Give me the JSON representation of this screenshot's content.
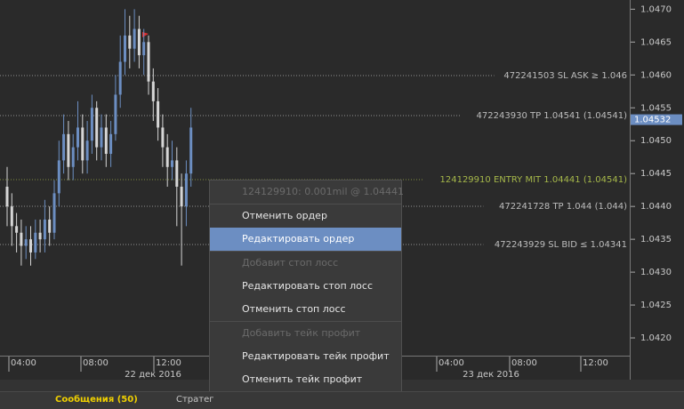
{
  "chart": {
    "type": "candlestick",
    "ylim": [
      1.04173,
      1.04714
    ],
    "yticks": [
      {
        "value": 1.047,
        "label": "1.0470"
      },
      1.0465,
      {
        "value": 1.046,
        "label": "1.0460"
      },
      1.0455,
      {
        "value": 1.045,
        "label": "1.0450"
      },
      1.0445,
      {
        "value": 1.044,
        "label": "1.0440"
      },
      1.0435,
      {
        "value": 1.043,
        "label": "1.0430"
      },
      1.0425,
      {
        "value": 1.042,
        "label": "1.0420"
      }
    ],
    "current_price": 1.04532,
    "open": [
      1.0443,
      1.044,
      1.0437,
      1.0436,
      1.0434,
      1.0435,
      1.0433,
      1.0436,
      1.0435,
      1.0438,
      1.0436,
      1.0442,
      1.0447,
      1.0451,
      1.0446,
      1.0449,
      1.0452,
      1.0447,
      1.045,
      1.0455,
      1.0449,
      1.0452,
      1.0448,
      1.0451,
      1.0457,
      1.0462,
      1.0466,
      1.0464,
      1.0467,
      1.0463,
      1.0465,
      1.0459,
      1.0456,
      1.0452,
      1.0449,
      1.0446,
      1.0447,
      1.0443,
      1.044,
      1.0445
    ],
    "high": [
      1.0446,
      1.0442,
      1.0439,
      1.0438,
      1.0437,
      1.0437,
      1.0438,
      1.0438,
      1.0441,
      1.044,
      1.0444,
      1.045,
      1.0454,
      1.0453,
      1.0451,
      1.0456,
      1.0454,
      1.0453,
      1.0457,
      1.0456,
      1.0454,
      1.0454,
      1.0453,
      1.046,
      1.0466,
      1.047,
      1.0469,
      1.047,
      1.0469,
      1.0467,
      1.0466,
      1.0461,
      1.0458,
      1.0454,
      1.0451,
      1.045,
      1.0449,
      1.0445,
      1.0447,
      1.0455
    ],
    "low": [
      1.0437,
      1.0434,
      1.0433,
      1.0431,
      1.0432,
      1.0431,
      1.0432,
      1.0433,
      1.0433,
      1.0434,
      1.0435,
      1.044,
      1.0445,
      1.0444,
      1.0444,
      1.0447,
      1.0445,
      1.0445,
      1.0448,
      1.0447,
      1.0447,
      1.0446,
      1.0446,
      1.045,
      1.0455,
      1.046,
      1.0461,
      1.0462,
      1.0461,
      1.046,
      1.0457,
      1.0453,
      1.045,
      1.0446,
      1.0443,
      1.0444,
      1.0437,
      1.0431,
      1.0437,
      1.0443
    ],
    "close": [
      1.044,
      1.0437,
      1.0436,
      1.0434,
      1.0435,
      1.0433,
      1.0436,
      1.0435,
      1.0438,
      1.0436,
      1.0442,
      1.0447,
      1.0451,
      1.0446,
      1.0449,
      1.0452,
      1.0447,
      1.045,
      1.0455,
      1.0449,
      1.0452,
      1.0448,
      1.0451,
      1.0457,
      1.0462,
      1.0466,
      1.0464,
      1.0467,
      1.0463,
      1.0465,
      1.0459,
      1.0456,
      1.0452,
      1.0449,
      1.0446,
      1.0447,
      1.0443,
      1.044,
      1.0445,
      1.0452
    ],
    "time_labels": [
      "04:00",
      "08:00",
      "12:00",
      "04:00",
      "08:00",
      "12:00"
    ],
    "date_labels": [
      "22 дек 2016",
      "23 дек 2016"
    ],
    "order_lines": [
      {
        "text": "472241503 SL ASK ≥ 1.046",
        "color": "#bdbdbd"
      },
      {
        "text": "472243930 TP 1.04541 (1.04541)",
        "color": "#bdbdbd"
      },
      {
        "text": "124129910 ENTRY MIT 1.04441 (1.04541)",
        "color": "#a6b84a"
      },
      {
        "text": "472241728 TP 1.044 (1.044)",
        "color": "#bdbdbd"
      },
      {
        "text": "472243929 SL BID ≤ 1.04341",
        "color": "#bdbdbd"
      }
    ]
  },
  "context_menu": {
    "items": [
      {
        "label": "124129910: 0.001mil @ 1.04441",
        "enabled": false
      },
      {
        "label": "Отменить ордер",
        "enabled": true
      },
      {
        "label": "Редактировать ордер",
        "enabled": true,
        "highlighted": true
      },
      {
        "label": "Добавит стоп лосс",
        "enabled": false
      },
      {
        "label": "Редактировать стоп лосс",
        "enabled": true
      },
      {
        "label": "Отменить стоп лосс",
        "enabled": true
      },
      {
        "label": "Добавить тейк профит",
        "enabled": false
      },
      {
        "label": "Редактировать тейк профит",
        "enabled": true
      },
      {
        "label": "Отменить тейк профит",
        "enabled": true
      }
    ]
  },
  "tabs": [
    {
      "label": "Сообщения (50)",
      "active": true
    },
    {
      "label": "Стратег",
      "active": false
    }
  ]
}
